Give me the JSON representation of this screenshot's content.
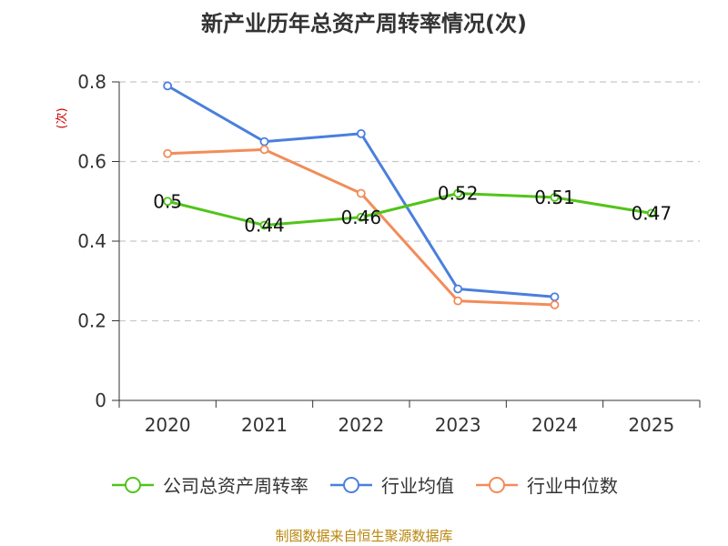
{
  "chart_data": {
    "type": "line",
    "title": "新产业历年总资产周转率情况(次)",
    "ylabel": "(次)",
    "xlabel": "",
    "categories": [
      "2020",
      "2021",
      "2022",
      "2023",
      "2024",
      "2025"
    ],
    "ylim": [
      0,
      0.8
    ],
    "yticks": [
      0,
      0.2,
      0.4,
      0.6,
      0.8
    ],
    "ytick_labels": [
      "0",
      "0.2",
      "0.4",
      "0.6",
      "0.8"
    ],
    "grid": true,
    "legend_position": "bottom",
    "series": [
      {
        "name": "公司总资产周转率",
        "color": "#52c41a",
        "values": [
          0.5,
          0.44,
          0.46,
          0.52,
          0.51,
          0.47
        ],
        "labels": [
          "0.5",
          "0.44",
          "0.46",
          "0.52",
          "0.51",
          "0.47"
        ]
      },
      {
        "name": "行业均值",
        "color": "#4a7fdc",
        "values": [
          0.79,
          0.65,
          0.67,
          0.28,
          0.26,
          null
        ]
      },
      {
        "name": "行业中位数",
        "color": "#f28c5a",
        "values": [
          0.62,
          0.63,
          0.52,
          0.25,
          0.24,
          null
        ]
      }
    ]
  },
  "source": "制图数据来自恒生聚源数据库"
}
